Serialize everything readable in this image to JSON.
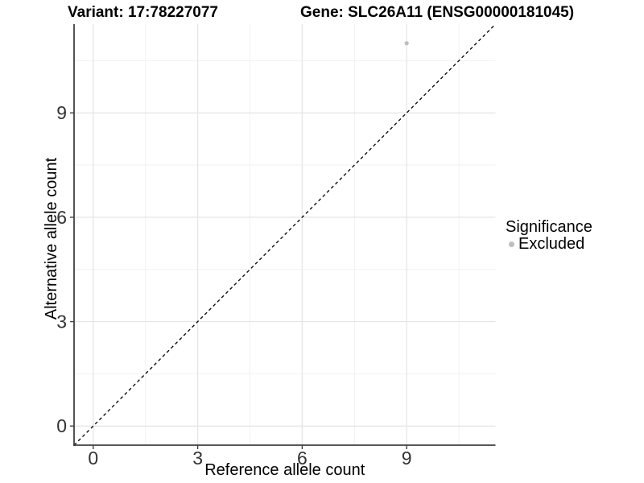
{
  "header": {
    "variant_title": "Variant: 17:78227077",
    "gene_title": "Gene: SLC26A11 (ENSG00000181045)"
  },
  "chart_data": {
    "type": "scatter",
    "title_left": "Variant: 17:78227077",
    "title_right": "Gene: SLC26A11 (ENSG00000181045)",
    "xlabel": "Reference allele count",
    "ylabel": "Alternative allele count",
    "xlim": [
      -0.55,
      11.55
    ],
    "ylim": [
      -0.55,
      11.55
    ],
    "x_major_ticks": [
      0,
      3,
      6,
      9
    ],
    "y_major_ticks": [
      0,
      3,
      6,
      9
    ],
    "x_minor_ticks": [
      1.5,
      4.5,
      7.5,
      10.5
    ],
    "y_minor_ticks": [
      1.5,
      4.5,
      7.5,
      10.5
    ],
    "grid": true,
    "series": [
      {
        "name": "Excluded",
        "color": "#bebebe",
        "points": [
          {
            "x": 9,
            "y": 11
          }
        ]
      }
    ],
    "reference_line": {
      "kind": "identity",
      "style": "dashed",
      "color": "#000000"
    },
    "legend": {
      "title": "Significance",
      "position": "right",
      "entries": [
        {
          "label": "Excluded",
          "color": "#bebebe"
        }
      ]
    },
    "style": {
      "grid_major_color": "#e4e4e4",
      "grid_minor_color": "#f1f1f1",
      "axis_line_color": "#404040",
      "tick_label_color": "#333333",
      "axis_title_color": "#000000",
      "background": "#ffffff"
    }
  }
}
